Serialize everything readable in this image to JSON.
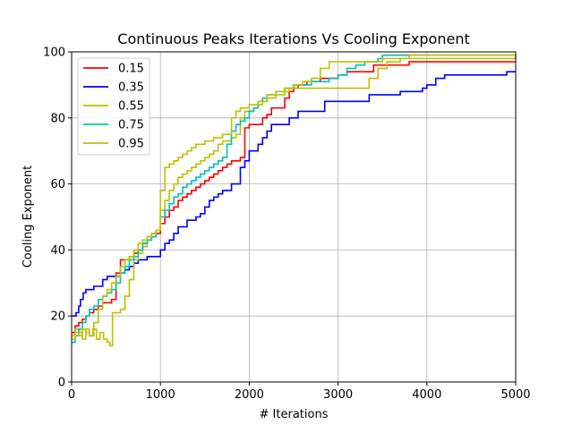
{
  "chart_data": {
    "type": "line",
    "title": "Continuous Peaks Iterations Vs Cooling Exponent",
    "xlabel": "# Iterations",
    "ylabel": "Cooling Exponent",
    "xlim": [
      0,
      5000
    ],
    "ylim": [
      0,
      100
    ],
    "xticks": [
      "0",
      "1000",
      "2000",
      "3000",
      "4000",
      "5000"
    ],
    "yticks": [
      "0",
      "20",
      "40",
      "60",
      "80",
      "100"
    ],
    "grid": true,
    "legend_position": "top-left",
    "series": [
      {
        "name": "0.15",
        "color": "#ff0000",
        "points": [
          [
            0,
            15
          ],
          [
            40,
            17
          ],
          [
            80,
            18
          ],
          [
            120,
            19
          ],
          [
            160,
            20
          ],
          [
            200,
            21
          ],
          [
            250,
            22
          ],
          [
            300,
            23
          ],
          [
            350,
            24
          ],
          [
            400,
            24
          ],
          [
            450,
            25
          ],
          [
            500,
            33
          ],
          [
            550,
            37
          ],
          [
            600,
            37
          ],
          [
            650,
            38
          ],
          [
            700,
            39
          ],
          [
            750,
            40
          ],
          [
            800,
            42
          ],
          [
            850,
            43
          ],
          [
            900,
            44
          ],
          [
            950,
            45
          ],
          [
            1000,
            48
          ],
          [
            1050,
            50
          ],
          [
            1100,
            52
          ],
          [
            1150,
            53
          ],
          [
            1200,
            55
          ],
          [
            1250,
            56
          ],
          [
            1300,
            57
          ],
          [
            1350,
            58
          ],
          [
            1400,
            59
          ],
          [
            1450,
            60
          ],
          [
            1500,
            61
          ],
          [
            1550,
            62
          ],
          [
            1600,
            63
          ],
          [
            1650,
            64
          ],
          [
            1700,
            65
          ],
          [
            1750,
            66
          ],
          [
            1800,
            67
          ],
          [
            1900,
            68
          ],
          [
            1950,
            77
          ],
          [
            2000,
            78
          ],
          [
            2100,
            78
          ],
          [
            2150,
            80
          ],
          [
            2200,
            81
          ],
          [
            2250,
            83
          ],
          [
            2300,
            83
          ],
          [
            2400,
            86
          ],
          [
            2450,
            88
          ],
          [
            2500,
            89
          ],
          [
            2550,
            90
          ],
          [
            2650,
            91
          ],
          [
            2800,
            92
          ],
          [
            3000,
            93
          ],
          [
            3100,
            94
          ],
          [
            3300,
            94
          ],
          [
            3400,
            96
          ],
          [
            3800,
            97
          ],
          [
            5000,
            97
          ]
        ]
      },
      {
        "name": "0.35",
        "color": "#0000ff",
        "points": [
          [
            0,
            20
          ],
          [
            50,
            21
          ],
          [
            80,
            23
          ],
          [
            100,
            25
          ],
          [
            130,
            27
          ],
          [
            160,
            28
          ],
          [
            250,
            29
          ],
          [
            350,
            31
          ],
          [
            400,
            32
          ],
          [
            500,
            32
          ],
          [
            550,
            33
          ],
          [
            600,
            34
          ],
          [
            650,
            35
          ],
          [
            700,
            36
          ],
          [
            750,
            37
          ],
          [
            800,
            37
          ],
          [
            850,
            38
          ],
          [
            950,
            38
          ],
          [
            1000,
            40
          ],
          [
            1050,
            42
          ],
          [
            1100,
            43
          ],
          [
            1150,
            45
          ],
          [
            1200,
            47
          ],
          [
            1300,
            49
          ],
          [
            1400,
            50
          ],
          [
            1450,
            51
          ],
          [
            1500,
            53
          ],
          [
            1550,
            55
          ],
          [
            1600,
            56
          ],
          [
            1650,
            57
          ],
          [
            1700,
            58
          ],
          [
            1800,
            60
          ],
          [
            1900,
            65
          ],
          [
            1950,
            67
          ],
          [
            2000,
            70
          ],
          [
            2100,
            72
          ],
          [
            2150,
            74
          ],
          [
            2200,
            76
          ],
          [
            2250,
            78
          ],
          [
            2300,
            78
          ],
          [
            2450,
            80
          ],
          [
            2550,
            82
          ],
          [
            2600,
            82
          ],
          [
            2850,
            85
          ],
          [
            3350,
            87
          ],
          [
            3650,
            87
          ],
          [
            3700,
            88
          ],
          [
            3950,
            89
          ],
          [
            4000,
            90
          ],
          [
            4100,
            92
          ],
          [
            4200,
            93
          ],
          [
            4900,
            94
          ],
          [
            5000,
            94
          ]
        ]
      },
      {
        "name": "0.55",
        "color": "#bfbf00",
        "points": [
          [
            0,
            14
          ],
          [
            40,
            16
          ],
          [
            80,
            15
          ],
          [
            120,
            13
          ],
          [
            160,
            16
          ],
          [
            200,
            14
          ],
          [
            240,
            16
          ],
          [
            280,
            13
          ],
          [
            320,
            15
          ],
          [
            360,
            13
          ],
          [
            400,
            12
          ],
          [
            430,
            11
          ],
          [
            460,
            21
          ],
          [
            550,
            22
          ],
          [
            600,
            26
          ],
          [
            650,
            31
          ],
          [
            700,
            37
          ],
          [
            750,
            39
          ],
          [
            800,
            41
          ],
          [
            850,
            43
          ],
          [
            900,
            45
          ],
          [
            950,
            46
          ],
          [
            1000,
            52
          ],
          [
            1050,
            55
          ],
          [
            1100,
            58
          ],
          [
            1150,
            60
          ],
          [
            1200,
            62
          ],
          [
            1250,
            63
          ],
          [
            1300,
            64
          ],
          [
            1350,
            65
          ],
          [
            1400,
            66
          ],
          [
            1450,
            67
          ],
          [
            1500,
            68
          ],
          [
            1550,
            69
          ],
          [
            1600,
            70
          ],
          [
            1650,
            72
          ],
          [
            1700,
            73
          ],
          [
            1800,
            74
          ],
          [
            1850,
            75
          ],
          [
            1900,
            80
          ],
          [
            1950,
            82
          ],
          [
            2000,
            82
          ],
          [
            2050,
            83
          ],
          [
            2100,
            84
          ],
          [
            2150,
            85
          ],
          [
            2200,
            86
          ],
          [
            2300,
            87
          ],
          [
            2400,
            88
          ],
          [
            2450,
            89
          ],
          [
            3200,
            89
          ],
          [
            3350,
            92
          ],
          [
            3450,
            95
          ],
          [
            3550,
            97
          ],
          [
            3700,
            98
          ],
          [
            5000,
            99
          ]
        ]
      },
      {
        "name": "0.75",
        "color": "#00bfbf",
        "points": [
          [
            0,
            12
          ],
          [
            40,
            14
          ],
          [
            80,
            16
          ],
          [
            120,
            18
          ],
          [
            160,
            20
          ],
          [
            200,
            22
          ],
          [
            250,
            23
          ],
          [
            300,
            25
          ],
          [
            350,
            26
          ],
          [
            400,
            27
          ],
          [
            450,
            28
          ],
          [
            500,
            30
          ],
          [
            550,
            33
          ],
          [
            600,
            35
          ],
          [
            650,
            37
          ],
          [
            700,
            38
          ],
          [
            750,
            40
          ],
          [
            800,
            42
          ],
          [
            850,
            43
          ],
          [
            900,
            44
          ],
          [
            950,
            46
          ],
          [
            1000,
            50
          ],
          [
            1050,
            52
          ],
          [
            1100,
            54
          ],
          [
            1150,
            56
          ],
          [
            1200,
            57
          ],
          [
            1250,
            59
          ],
          [
            1300,
            60
          ],
          [
            1350,
            61
          ],
          [
            1400,
            62
          ],
          [
            1450,
            63
          ],
          [
            1500,
            64
          ],
          [
            1550,
            65
          ],
          [
            1600,
            66
          ],
          [
            1650,
            67
          ],
          [
            1700,
            68
          ],
          [
            1750,
            72
          ],
          [
            1800,
            76
          ],
          [
            1850,
            78
          ],
          [
            1900,
            79
          ],
          [
            1950,
            80
          ],
          [
            2000,
            82
          ],
          [
            2050,
            83
          ],
          [
            2100,
            85
          ],
          [
            2150,
            86
          ],
          [
            2200,
            87
          ],
          [
            2300,
            88
          ],
          [
            2400,
            89
          ],
          [
            2500,
            90
          ],
          [
            2600,
            90
          ],
          [
            2700,
            91
          ],
          [
            2800,
            91
          ],
          [
            2900,
            92
          ],
          [
            3000,
            93
          ],
          [
            3100,
            95
          ],
          [
            3200,
            96
          ],
          [
            3300,
            97
          ],
          [
            3450,
            98
          ],
          [
            3500,
            99
          ],
          [
            5000,
            99
          ]
        ]
      },
      {
        "name": "0.95",
        "color": "#bfbf00",
        "points": [
          [
            0,
            13
          ],
          [
            40,
            15
          ],
          [
            80,
            14
          ],
          [
            120,
            16
          ],
          [
            160,
            15
          ],
          [
            200,
            14
          ],
          [
            250,
            18
          ],
          [
            300,
            22
          ],
          [
            350,
            26
          ],
          [
            400,
            28
          ],
          [
            450,
            30
          ],
          [
            500,
            32
          ],
          [
            550,
            35
          ],
          [
            600,
            37
          ],
          [
            650,
            38
          ],
          [
            700,
            40
          ],
          [
            750,
            42
          ],
          [
            800,
            43
          ],
          [
            850,
            44
          ],
          [
            900,
            45
          ],
          [
            950,
            46
          ],
          [
            1000,
            58
          ],
          [
            1050,
            65
          ],
          [
            1100,
            66
          ],
          [
            1150,
            67
          ],
          [
            1200,
            68
          ],
          [
            1250,
            69
          ],
          [
            1300,
            70
          ],
          [
            1350,
            71
          ],
          [
            1400,
            72
          ],
          [
            1450,
            72
          ],
          [
            1500,
            73
          ],
          [
            1600,
            74
          ],
          [
            1700,
            75
          ],
          [
            1800,
            80
          ],
          [
            1850,
            82
          ],
          [
            1900,
            83
          ],
          [
            2000,
            84
          ],
          [
            2100,
            85
          ],
          [
            2200,
            87
          ],
          [
            2300,
            88
          ],
          [
            2400,
            89
          ],
          [
            2500,
            90
          ],
          [
            2600,
            91
          ],
          [
            2700,
            92
          ],
          [
            2800,
            95
          ],
          [
            2900,
            97
          ],
          [
            3000,
            97
          ],
          [
            3400,
            97
          ],
          [
            3500,
            98
          ],
          [
            3800,
            99
          ],
          [
            5000,
            99
          ]
        ]
      }
    ]
  }
}
